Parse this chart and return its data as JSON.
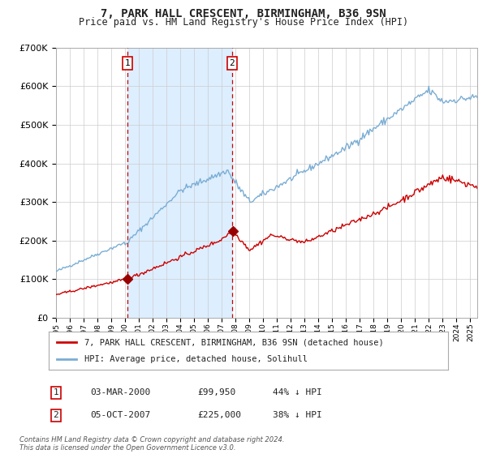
{
  "title": "7, PARK HALL CRESCENT, BIRMINGHAM, B36 9SN",
  "subtitle": "Price paid vs. HM Land Registry's House Price Index (HPI)",
  "title_fontsize": 10,
  "subtitle_fontsize": 8.5,
  "background_color": "#ffffff",
  "plot_bg_color": "#ffffff",
  "grid_color": "#cccccc",
  "hpi_line_color": "#7aadd4",
  "price_line_color": "#cc0000",
  "marker_color": "#990000",
  "shade_color": "#ddeeff",
  "dashed_line_color": "#cc0000",
  "annotation_border_color": "#cc0000",
  "purchase1": {
    "date_num": 2000.17,
    "price": 99950,
    "label": "1",
    "date_str": "03-MAR-2000",
    "pct": "44% ↓ HPI"
  },
  "purchase2": {
    "date_num": 2007.75,
    "price": 225000,
    "label": "2",
    "date_str": "05-OCT-2007",
    "pct": "38% ↓ HPI"
  },
  "legend_label_red": "7, PARK HALL CRESCENT, BIRMINGHAM, B36 9SN (detached house)",
  "legend_label_blue": "HPI: Average price, detached house, Solihull",
  "footer": "Contains HM Land Registry data © Crown copyright and database right 2024.\nThis data is licensed under the Open Government Licence v3.0.",
  "ylim": [
    0,
    700000
  ],
  "xlim_start": 1995.0,
  "xlim_end": 2025.5
}
